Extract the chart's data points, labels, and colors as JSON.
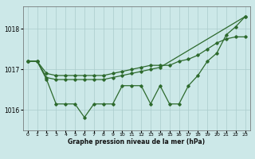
{
  "bg_color": "#cce8e8",
  "grid_color": "#aacccc",
  "line_color": "#2d6a2d",
  "xlabel": "Graphe pression niveau de la mer (hPa)",
  "xlim": [
    -0.5,
    23.5
  ],
  "ylim": [
    1015.5,
    1018.55
  ],
  "yticks": [
    1016,
    1017,
    1018
  ],
  "xticks": [
    0,
    1,
    2,
    3,
    4,
    5,
    6,
    7,
    8,
    9,
    10,
    11,
    12,
    13,
    14,
    15,
    16,
    17,
    18,
    19,
    20,
    21,
    22,
    23
  ],
  "series": [
    {
      "x": [
        0,
        1,
        2,
        3,
        4,
        5,
        6,
        7,
        8,
        9,
        10,
        11,
        12,
        13,
        14,
        15,
        16,
        17,
        18,
        19,
        20,
        21,
        22,
        23
      ],
      "y": [
        1017.2,
        1017.2,
        1016.9,
        1016.85,
        1016.85,
        1016.85,
        1016.85,
        1016.85,
        1016.85,
        1016.9,
        1016.95,
        1017.0,
        1017.05,
        1017.1,
        1017.1,
        1017.1,
        1017.2,
        1017.25,
        1017.35,
        1017.5,
        1017.65,
        1017.75,
        1017.8,
        1017.8
      ]
    },
    {
      "x": [
        0,
        1,
        2,
        3,
        4,
        5,
        6,
        7,
        8,
        9,
        10,
        11,
        12,
        13,
        14,
        23
      ],
      "y": [
        1017.2,
        1017.2,
        1016.8,
        1016.75,
        1016.75,
        1016.75,
        1016.75,
        1016.75,
        1016.75,
        1016.8,
        1016.85,
        1016.9,
        1016.95,
        1017.0,
        1017.05,
        1018.3
      ]
    },
    {
      "x": [
        0,
        1,
        2,
        3,
        4,
        5,
        6,
        7,
        8,
        9,
        10,
        11,
        12,
        13,
        14,
        15,
        16,
        17,
        18,
        19,
        20,
        21,
        22,
        23
      ],
      "y": [
        1017.2,
        1017.2,
        1016.75,
        1016.15,
        1016.15,
        1016.15,
        1015.82,
        1016.15,
        1016.15,
        1016.15,
        1016.6,
        1016.6,
        1016.6,
        1016.15,
        1016.6,
        1016.15,
        1016.15,
        1016.6,
        1016.85,
        1017.2,
        1017.4,
        1017.85,
        1018.05,
        1018.3
      ]
    }
  ]
}
